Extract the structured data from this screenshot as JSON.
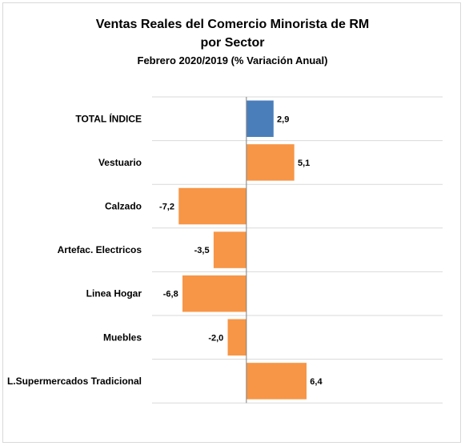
{
  "chart_data": {
    "type": "bar",
    "orientation": "horizontal",
    "title": "Ventas Reales del Comercio Minorista de RM",
    "title_line2": "por Sector",
    "subtitle": "Febrero 2020/2019 (% Variación Anual)",
    "categories": [
      "TOTAL ÍNDICE",
      "Vestuario",
      "Calzado",
      "Artefac. Electricos",
      "Linea Hogar",
      "Muebles",
      "L.Supermercados Tradicional"
    ],
    "values": [
      2.9,
      5.1,
      -7.2,
      -3.5,
      -6.8,
      -2.0,
      6.4
    ],
    "value_labels": [
      "2,9",
      "5,1",
      "-7,2",
      "-3,5",
      "-6,8",
      "-2,0",
      "6,4"
    ],
    "bar_colors": [
      "#4a7ebb",
      "#f79646",
      "#f79646",
      "#f79646",
      "#f79646",
      "#f79646",
      "#f79646"
    ],
    "xlim": [
      -10.0,
      20.8
    ],
    "grid": true,
    "legend": false
  }
}
